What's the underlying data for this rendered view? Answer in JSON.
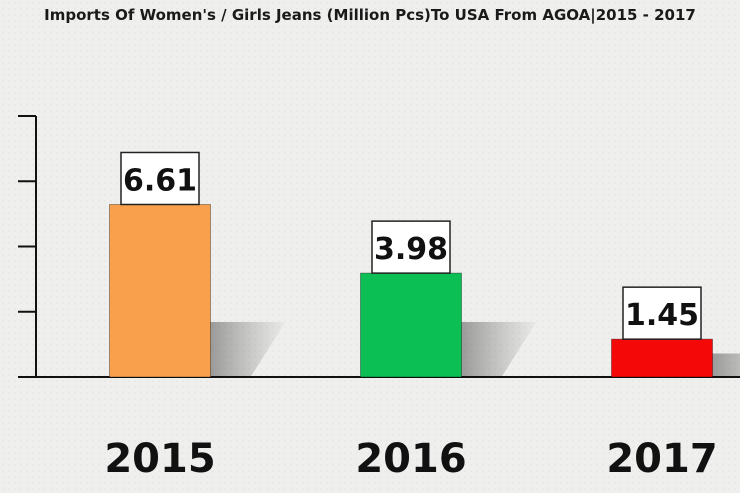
{
  "chart_data": {
    "type": "bar",
    "title": "Imports Of Women's / Girls Jeans (Million Pcs)To USA From AGOA|2015 - 2017",
    "categories": [
      "2015",
      "2016",
      "2017"
    ],
    "values": [
      6.61,
      3.98,
      1.45
    ],
    "value_labels": [
      "6.61",
      "3.98",
      "1.45"
    ],
    "colors": [
      "#F9A04D",
      "#0BBF55",
      "#F50808"
    ],
    "xlabel": "",
    "ylabel": "",
    "ylim": [
      0,
      10
    ],
    "y_tick_labels_shown": false,
    "grid": false,
    "legend": "none"
  }
}
